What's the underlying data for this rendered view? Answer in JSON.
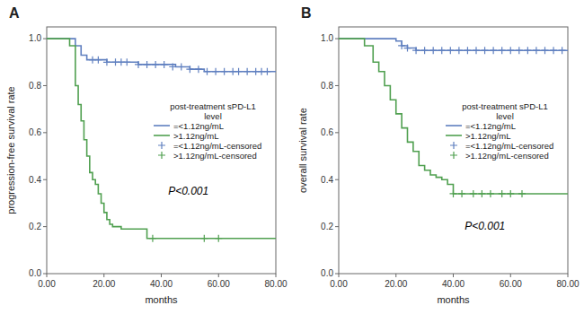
{
  "chart_data": [
    {
      "type": "step",
      "title": "A",
      "x_label": "months",
      "y_label": "progression-free survival rate",
      "xlim": [
        0,
        80
      ],
      "ylim": [
        0.0,
        1.05
      ],
      "xticks": [
        {
          "value": 0,
          "label": "0.00"
        },
        {
          "value": 20,
          "label": "20.00"
        },
        {
          "value": 40,
          "label": "40.00"
        },
        {
          "value": 60,
          "label": "60.00"
        },
        {
          "value": 80,
          "label": "80.00"
        }
      ],
      "yticks": [
        {
          "value": 0.0,
          "label": "0.0"
        },
        0.2,
        0.4,
        0.6,
        0.8,
        {
          "value": 1.0,
          "label": "1.0"
        }
      ],
      "grid": false,
      "legend": "right",
      "legend_title": "post-treatment sPD-L1\nlevel",
      "annotations": [
        "P<0.001"
      ],
      "series": [
        {
          "name": "=<1.12ng/mL",
          "type": "step",
          "color": "#6080c0",
          "x": [
            0,
            5,
            10,
            12,
            14,
            16,
            18,
            21,
            24,
            26,
            28,
            30,
            32,
            35,
            40,
            45,
            50,
            55,
            60,
            65,
            70,
            75,
            80
          ],
          "values": [
            1.0,
            1.0,
            0.97,
            0.93,
            0.91,
            0.91,
            0.91,
            0.9,
            0.9,
            0.9,
            0.9,
            0.9,
            0.89,
            0.89,
            0.89,
            0.88,
            0.87,
            0.86,
            0.86,
            0.86,
            0.86,
            0.86,
            0.86
          ]
        },
        {
          "name": ">1.12ng/mL",
          "type": "step",
          "color": "#50a050",
          "x": [
            0,
            8,
            10,
            11,
            12,
            13,
            14,
            15,
            16,
            17,
            18,
            19,
            20,
            21,
            22,
            23,
            24,
            25,
            26,
            27,
            28,
            30,
            32,
            35,
            37,
            55,
            60,
            80
          ],
          "values": [
            1.0,
            0.97,
            0.8,
            0.72,
            0.65,
            0.57,
            0.5,
            0.43,
            0.4,
            0.38,
            0.34,
            0.3,
            0.26,
            0.23,
            0.21,
            0.2,
            0.2,
            0.2,
            0.19,
            0.19,
            0.19,
            0.19,
            0.19,
            0.15,
            0.15,
            0.15,
            0.15,
            0.15
          ]
        },
        {
          "name": "=<1.12ng/mL-censored",
          "type": "scatter",
          "marker": "plus",
          "color": "#6080c0",
          "x": [
            16,
            18,
            21,
            24,
            26,
            28,
            32,
            35,
            38,
            41,
            44,
            47,
            50,
            53,
            56,
            59,
            62,
            65,
            67,
            70,
            73,
            75,
            77
          ],
          "values": [
            0.91,
            0.91,
            0.9,
            0.9,
            0.9,
            0.9,
            0.89,
            0.89,
            0.89,
            0.89,
            0.88,
            0.88,
            0.87,
            0.87,
            0.86,
            0.86,
            0.86,
            0.86,
            0.86,
            0.86,
            0.86,
            0.86,
            0.86
          ]
        },
        {
          "name": ">1.12ng/mL-censored",
          "type": "scatter",
          "marker": "plus",
          "color": "#50a050",
          "x": [
            37,
            55,
            60
          ],
          "values": [
            0.15,
            0.15,
            0.15
          ]
        }
      ]
    },
    {
      "type": "step",
      "title": "B",
      "x_label": "months",
      "y_label": "overall survival rate",
      "xlim": [
        0,
        80
      ],
      "ylim": [
        0.0,
        1.05
      ],
      "xticks": [
        {
          "value": 0,
          "label": "0.00"
        },
        {
          "value": 20,
          "label": "20.00"
        },
        {
          "value": 40,
          "label": "40.00"
        },
        {
          "value": 60,
          "label": "60.00"
        },
        {
          "value": 80,
          "label": "80.00"
        }
      ],
      "yticks": [
        {
          "value": 0.0,
          "label": "0.0"
        },
        0.2,
        0.4,
        0.6,
        0.8,
        {
          "value": 1.0,
          "label": "1.0"
        }
      ],
      "grid": false,
      "legend": "right",
      "legend_title": "post-treatment sPD-L1\nlevel",
      "annotations": [
        "P<0.001"
      ],
      "series": [
        {
          "name": "=<1.12ng/mL",
          "type": "step",
          "color": "#6080c0",
          "x": [
            0,
            9,
            12,
            15,
            18,
            20,
            22,
            24,
            27,
            30,
            35,
            40,
            45,
            50,
            55,
            60,
            65,
            70,
            75,
            80
          ],
          "values": [
            1.0,
            1.0,
            1.0,
            1.0,
            1.0,
            0.99,
            0.97,
            0.96,
            0.95,
            0.95,
            0.95,
            0.95,
            0.95,
            0.95,
            0.95,
            0.95,
            0.95,
            0.95,
            0.95,
            0.95
          ]
        },
        {
          "name": ">1.12ng/mL",
          "type": "step",
          "color": "#50a050",
          "x": [
            0,
            9,
            12,
            14,
            16,
            18,
            20,
            22,
            24,
            26,
            28,
            30,
            32,
            34,
            36,
            38,
            40,
            42,
            44,
            46,
            48,
            50,
            55,
            60,
            65,
            80
          ],
          "values": [
            1.0,
            0.97,
            0.9,
            0.86,
            0.8,
            0.74,
            0.68,
            0.62,
            0.56,
            0.52,
            0.46,
            0.44,
            0.42,
            0.41,
            0.4,
            0.38,
            0.34,
            0.34,
            0.34,
            0.34,
            0.34,
            0.34,
            0.34,
            0.34,
            0.34,
            0.34
          ]
        },
        {
          "name": "=<1.12ng/mL-censored",
          "type": "scatter",
          "marker": "plus",
          "color": "#6080c0",
          "x": [
            22,
            24,
            27,
            30,
            33,
            36,
            39,
            42,
            45,
            48,
            51,
            54,
            57,
            60,
            63,
            66,
            69,
            72,
            75,
            78
          ],
          "values": [
            0.97,
            0.96,
            0.95,
            0.95,
            0.95,
            0.95,
            0.95,
            0.95,
            0.95,
            0.95,
            0.95,
            0.95,
            0.95,
            0.95,
            0.95,
            0.95,
            0.95,
            0.95,
            0.95,
            0.95
          ]
        },
        {
          "name": ">1.12ng/mL-censored",
          "type": "scatter",
          "marker": "plus",
          "color": "#50a050",
          "x": [
            40,
            43,
            47,
            50,
            53,
            57,
            60,
            64
          ],
          "values": [
            0.34,
            0.34,
            0.34,
            0.34,
            0.34,
            0.34,
            0.34,
            0.34
          ]
        }
      ]
    }
  ]
}
